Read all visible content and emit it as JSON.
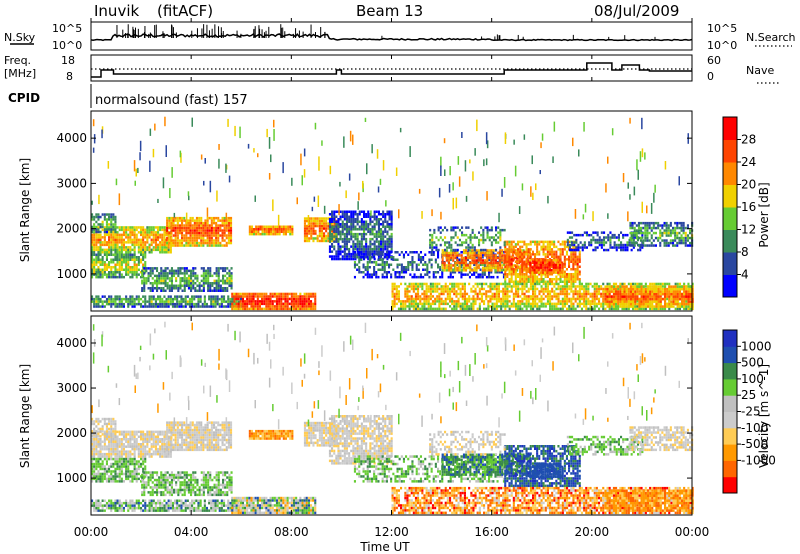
{
  "header": {
    "station": "Inuvik",
    "mode": "(fitACF)",
    "beam": "Beam 13",
    "date": "08/Jul/2009",
    "cpid_label": "CPID",
    "cpid_value": "normalsound (fast) 157"
  },
  "panels": {
    "nsky": {
      "left_label": "N.Sky",
      "left_ticks": [
        "10^5",
        "10^0"
      ],
      "right_label": "N.Search",
      "right_ticks": [
        "10^5",
        "10^0"
      ]
    },
    "freq": {
      "left_label_1": "Freq.",
      "left_label_2": "[MHz]",
      "left_ticks": [
        "18",
        "8"
      ],
      "right_label": "Nave",
      "right_ticks": [
        "60",
        "0"
      ]
    }
  },
  "colors": {
    "white_bg": "#ffffff",
    "power_scale": [
      "#0000ff",
      "#2a47a0",
      "#3a8a5a",
      "#66cc33",
      "#f0d000",
      "#ff8800",
      "#ff4400",
      "#ff0000"
    ],
    "velocity_scale": [
      "#ff0000",
      "#ff6600",
      "#ff9900",
      "#ffcc55",
      "#cccccc",
      "#c0c0c0",
      "#66cc33",
      "#3a8a4a",
      "#1f4fb0",
      "#2030c0"
    ]
  },
  "chart_data": [
    {
      "type": "heatmap",
      "name": "power",
      "ylabel": "Slant Range [km]",
      "yticks": [
        "1000",
        "2000",
        "3000",
        "4000"
      ],
      "ylim": [
        180,
        4600
      ],
      "colorbar_label": "Power [dB]",
      "colorbar_ticks": [
        "4",
        "8",
        "12",
        "16",
        "20",
        "24",
        "28"
      ]
    },
    {
      "type": "heatmap",
      "name": "velocity",
      "ylabel": "Slant Range [km]",
      "yticks": [
        "1000",
        "2000",
        "3000",
        "4000"
      ],
      "ylim": [
        180,
        4600
      ],
      "colorbar_label": "Velocity [m s^-1]",
      "colorbar_ticks": [
        "1000",
        "500",
        "100",
        "25",
        "-25",
        "-100",
        "-500",
        "-1000"
      ]
    }
  ],
  "time_axis": {
    "ticks": [
      "00:00",
      "04:00",
      "08:00",
      "12:00",
      "16:00",
      "20:00",
      "00:00"
    ],
    "label": "Time UT"
  }
}
